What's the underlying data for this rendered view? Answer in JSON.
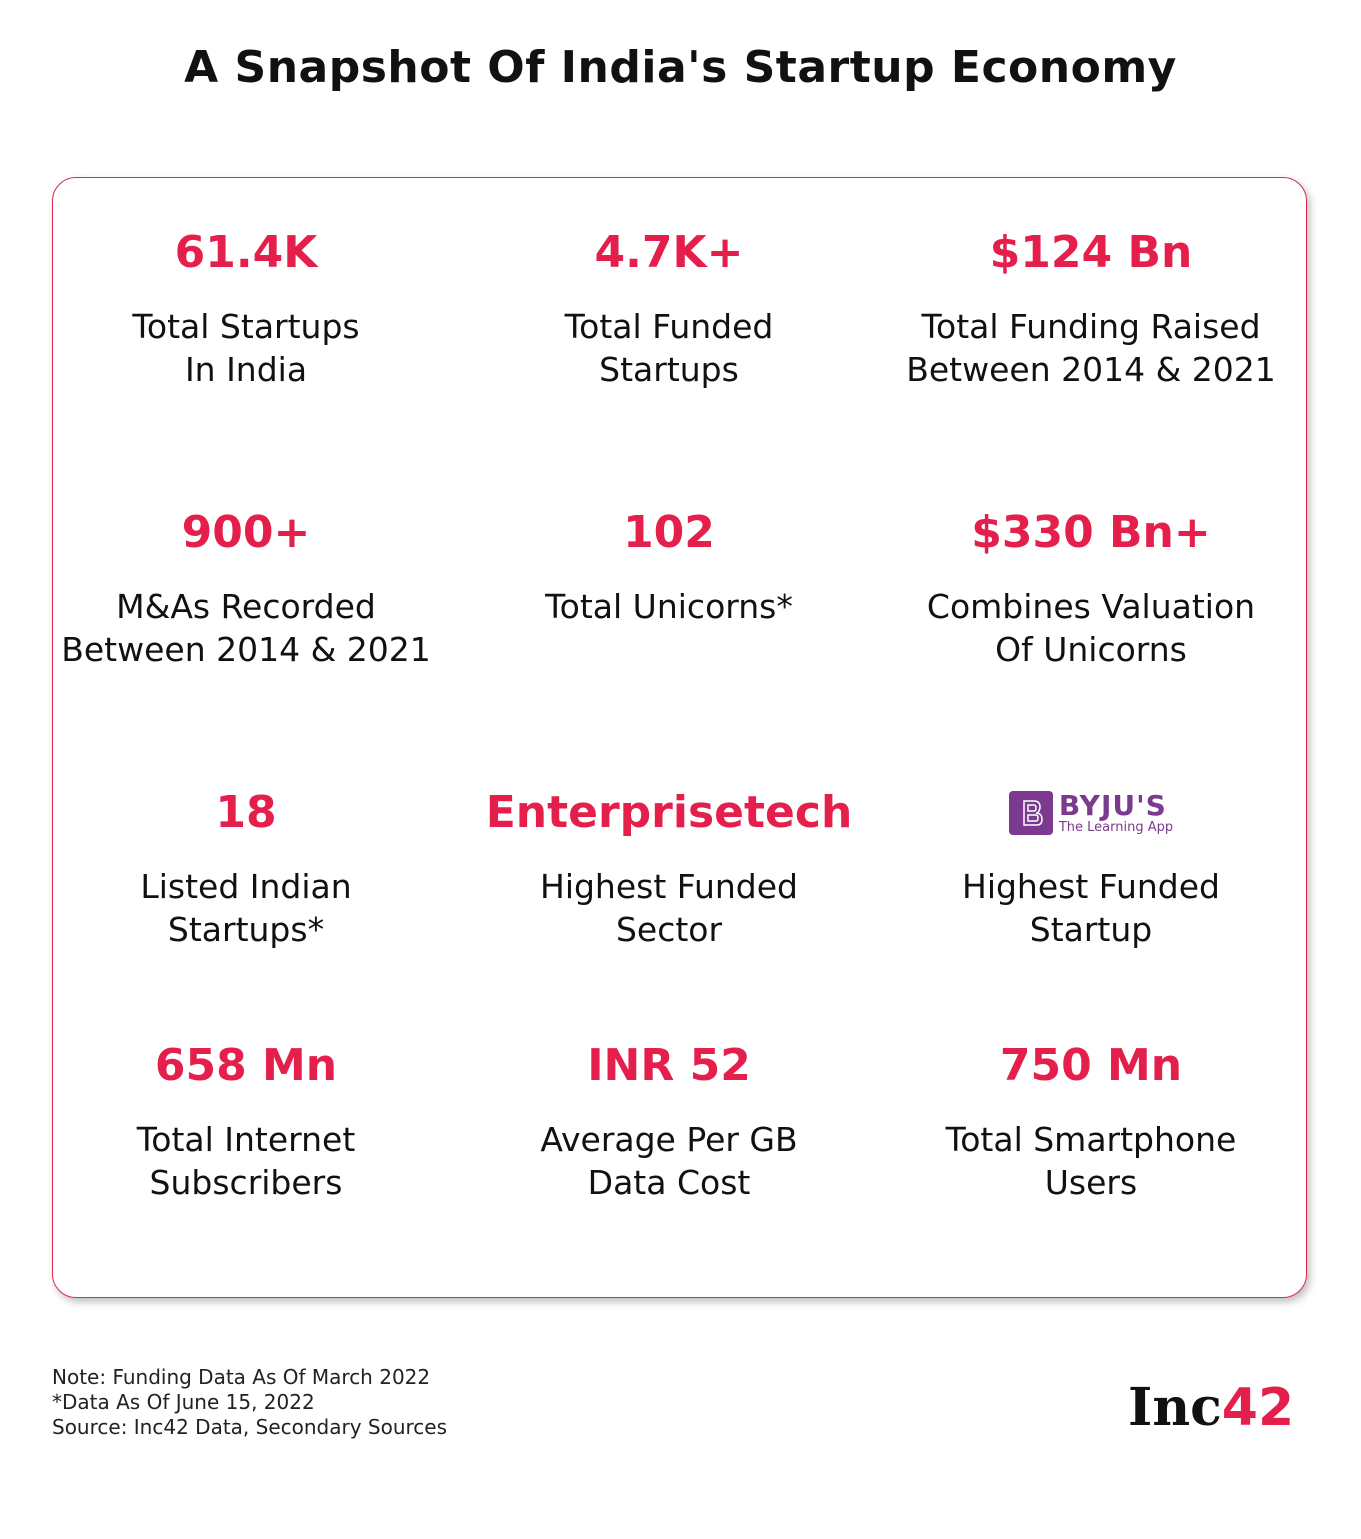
{
  "header": {
    "title": "A Snapshot Of India's Startup Economy"
  },
  "stats": [
    {
      "value": "61.4K",
      "label": [
        "Total Startups",
        "In India"
      ]
    },
    {
      "value": "4.7K+",
      "label": [
        "Total Funded",
        "Startups"
      ]
    },
    {
      "value": "$124 Bn",
      "label": [
        "Total Funding Raised",
        "Between 2014 & 2021"
      ]
    },
    {
      "value": "900+",
      "label": [
        "M&As Recorded",
        "Between 2014 & 2021"
      ]
    },
    {
      "value": "102",
      "label": [
        "Total Unicorns*"
      ]
    },
    {
      "value": "$330 Bn+",
      "label": [
        "Combines Valuation",
        "Of Unicorns"
      ]
    },
    {
      "value": "18",
      "label": [
        "Listed Indian",
        "Startups*"
      ]
    },
    {
      "value": "Enterprisetech",
      "label": [
        "Highest Funded",
        "Sector"
      ]
    },
    {
      "logo": {
        "name": "BYJU'S",
        "tagline": "The Learning App"
      },
      "label": [
        "Highest Funded",
        "Startup"
      ]
    },
    {
      "value": "658 Mn",
      "label": [
        "Total Internet",
        "Subscribers"
      ]
    },
    {
      "value": "INR 52",
      "label": [
        "Average Per GB",
        "Data Cost"
      ]
    },
    {
      "value": "750 Mn",
      "label": [
        "Total Smartphone",
        "Users"
      ]
    }
  ],
  "notes": [
    "Note: Funding Data As Of March 2022",
    "*Data As Of June 15, 2022",
    "Source: Inc42 Data, Secondary Sources"
  ],
  "brand": {
    "text": "Inc",
    "accent": "42"
  }
}
